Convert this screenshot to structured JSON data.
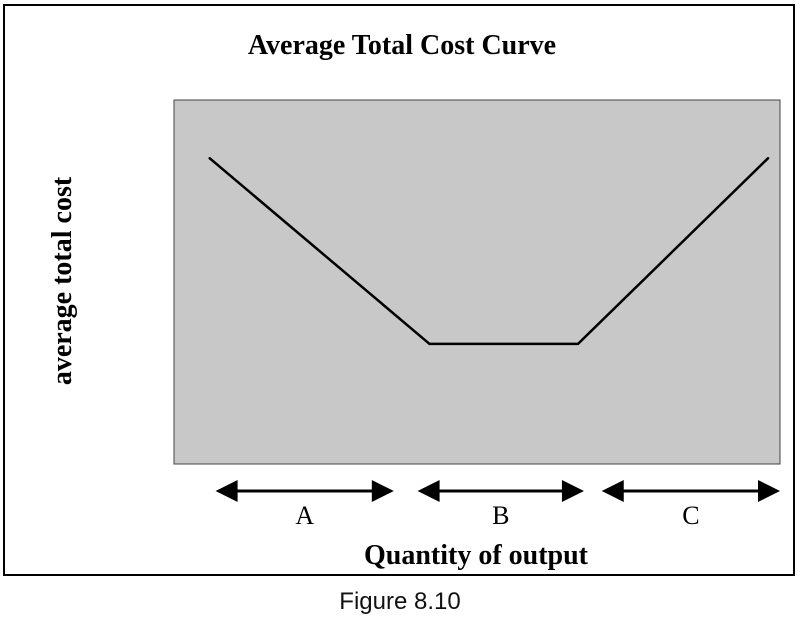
{
  "caption": "Figure 8.10",
  "colors": {
    "plot_background": "#c8c8c8",
    "line": "#000000",
    "frame": "#000000"
  },
  "chart_data": {
    "type": "line",
    "title": "Average Total Cost Curve",
    "xlabel": "Quantity of output",
    "ylabel": "average total cost",
    "grid": false,
    "legend": "none",
    "axis_ticks": "none",
    "series": [
      {
        "points": [
          {
            "x": 0.06,
            "y": 0.84
          },
          {
            "x": 0.43,
            "y": 0.33
          },
          {
            "x": 0.68,
            "y": 0.33
          },
          {
            "x": 1.0,
            "y": 0.84
          }
        ]
      }
    ],
    "xlim": [
      0,
      1.02
    ],
    "ylim": [
      0,
      1
    ],
    "regions": [
      {
        "label": "A",
        "from": 0.07,
        "to": 0.37
      },
      {
        "label": "B",
        "from": 0.41,
        "to": 0.69
      },
      {
        "label": "C",
        "from": 0.72,
        "to": 1.02
      }
    ]
  }
}
